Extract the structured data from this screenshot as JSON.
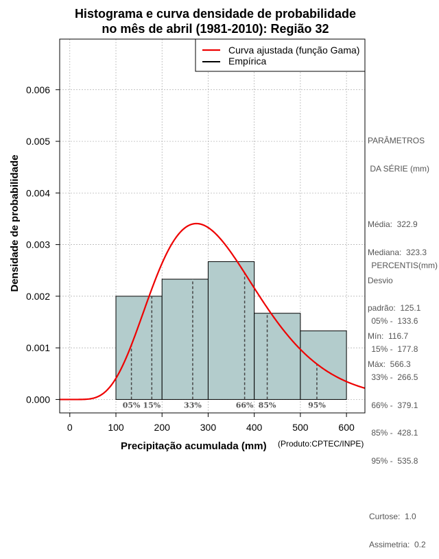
{
  "title_line1": "Histograma e curva densidade de probabilidade",
  "title_line2": "no mês de abril (1981-2010): Região 32",
  "credit": "(Produto:CPTEC/INPE)",
  "chart_data": {
    "type": "histogram",
    "xlabel": "Precipitação acumulada (mm)",
    "ylabel": "Densidade de probabilidade",
    "xlim": [
      -22,
      640
    ],
    "ylim": [
      -0.00026,
      0.00698
    ],
    "x_ticks": [
      0,
      100,
      200,
      300,
      400,
      500,
      600
    ],
    "y_ticks": [
      "0.000",
      "0.001",
      "0.002",
      "0.003",
      "0.004",
      "0.005",
      "0.006"
    ],
    "y_tick_values": [
      0,
      0.001,
      0.002,
      0.003,
      0.004,
      0.005,
      0.006
    ],
    "grid": true,
    "bins": [
      {
        "x0": 100,
        "x1": 200,
        "density": 0.002
      },
      {
        "x0": 200,
        "x1": 300,
        "density": 0.00233
      },
      {
        "x0": 300,
        "x1": 400,
        "density": 0.00267
      },
      {
        "x0": 400,
        "x1": 500,
        "density": 0.00167
      },
      {
        "x0": 500,
        "x1": 600,
        "density": 0.00133
      }
    ],
    "fitted_curve": {
      "name": "Curva ajustada (função Gama)",
      "shape": 6.66,
      "scale": 48.5,
      "color": "#ee0000"
    },
    "empirical_name": "Empírica",
    "percentile_lines": [
      {
        "label": "05%",
        "value": 133.6
      },
      {
        "label": "15%",
        "value": 177.8
      },
      {
        "label": "33%",
        "value": 266.5
      },
      {
        "label": "66%",
        "value": 379.1
      },
      {
        "label": "85%",
        "value": 428.1
      },
      {
        "label": "95%",
        "value": 535.8
      }
    ],
    "legend_position": "top-right",
    "bar_color": "#b3cccc"
  },
  "params": {
    "heading1": "PARÂMETROS",
    "heading2": " DA SÉRIE (mm)",
    "lines": [
      "Média:  322.9",
      "Mediana:  323.3",
      "Desvio",
      "padrão:  125.1",
      "Mín:  116.7",
      "Máx:  566.3"
    ]
  },
  "percentis": {
    "heading": " PERCENTIS(mm)",
    "lines": [
      " 05% -  133.6",
      " 15% -  177.8",
      " 33% -  266.5",
      " 66% -  379.1",
      " 85% -  428.1",
      " 95% -  535.8"
    ],
    "curtose": "Curtose:  1.0",
    "assimetria": "Assimetria:  0.2"
  }
}
